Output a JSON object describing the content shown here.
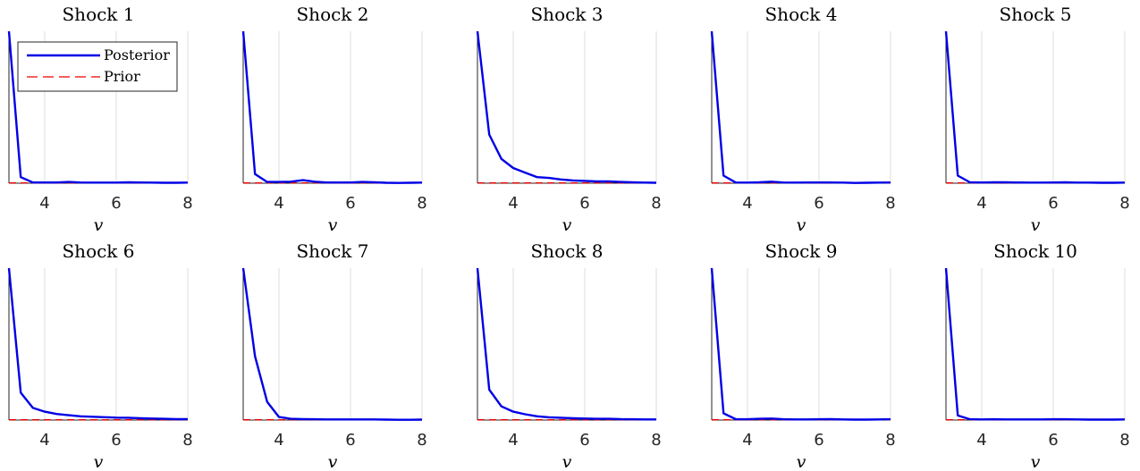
{
  "chart_data": {
    "type": "line",
    "layout": "2x5 small multiples",
    "xlabel": "v",
    "xlim": [
      3,
      8
    ],
    "xticks": [
      4,
      6,
      8
    ],
    "grid": "vertical",
    "legend": {
      "placement": "top-left of first panel",
      "entries": [
        {
          "label": "Posterior",
          "color": "#0000e6",
          "style": "solid"
        },
        {
          "label": "Prior",
          "color": "#e60000",
          "style": "dashed"
        }
      ]
    },
    "x": [
      3.0,
      3.33,
      3.67,
      4.0,
      4.33,
      4.67,
      5.0,
      5.33,
      5.67,
      6.0,
      6.33,
      6.67,
      7.0,
      7.33,
      7.67,
      8.0
    ],
    "panels": [
      {
        "title": "Shock 1",
        "posterior": [
          1.0,
          0.04,
          0.005,
          0.005,
          0.005,
          0.008,
          0.005,
          0.004,
          0.004,
          0.004,
          0.006,
          0.005,
          0.004,
          0.003,
          0.003,
          0.004
        ],
        "prior": [
          0.002,
          0.002,
          0.002,
          0.002,
          0.002,
          0.002,
          0.002,
          0.002,
          0.002,
          0.002,
          0.002,
          0.002,
          0.002,
          0.002,
          0.002,
          0.002
        ]
      },
      {
        "title": "Shock 2",
        "posterior": [
          1.0,
          0.06,
          0.008,
          0.008,
          0.01,
          0.02,
          0.01,
          0.005,
          0.005,
          0.005,
          0.008,
          0.006,
          0.003,
          0.002,
          0.003,
          0.004
        ],
        "prior": [
          0.002,
          0.002,
          0.002,
          0.002,
          0.002,
          0.002,
          0.002,
          0.002,
          0.002,
          0.002,
          0.002,
          0.002,
          0.002,
          0.002,
          0.002,
          0.002
        ]
      },
      {
        "title": "Shock 3",
        "posterior": [
          1.0,
          0.32,
          0.16,
          0.1,
          0.07,
          0.04,
          0.035,
          0.025,
          0.018,
          0.015,
          0.012,
          0.012,
          0.008,
          0.006,
          0.004,
          0.003
        ],
        "prior": [
          0.002,
          0.002,
          0.002,
          0.002,
          0.002,
          0.002,
          0.002,
          0.002,
          0.002,
          0.002,
          0.002,
          0.002,
          0.002,
          0.002,
          0.002,
          0.002
        ]
      },
      {
        "title": "Shock 4",
        "posterior": [
          1.0,
          0.05,
          0.005,
          0.004,
          0.006,
          0.01,
          0.005,
          0.004,
          0.005,
          0.005,
          0.005,
          0.004,
          0.002,
          0.003,
          0.004,
          0.005
        ],
        "prior": [
          0.002,
          0.002,
          0.002,
          0.002,
          0.002,
          0.002,
          0.002,
          0.002,
          0.002,
          0.002,
          0.002,
          0.002,
          0.002,
          0.002,
          0.002,
          0.002
        ]
      },
      {
        "title": "Shock 5",
        "posterior": [
          1.0,
          0.05,
          0.006,
          0.005,
          0.006,
          0.006,
          0.005,
          0.004,
          0.004,
          0.005,
          0.006,
          0.004,
          0.004,
          0.003,
          0.003,
          0.004
        ],
        "prior": [
          0.002,
          0.002,
          0.002,
          0.002,
          0.002,
          0.002,
          0.002,
          0.002,
          0.002,
          0.002,
          0.002,
          0.002,
          0.002,
          0.002,
          0.002,
          0.002
        ]
      },
      {
        "title": "Shock 6",
        "posterior": [
          1.0,
          0.18,
          0.08,
          0.055,
          0.04,
          0.032,
          0.025,
          0.022,
          0.019,
          0.016,
          0.015,
          0.012,
          0.01,
          0.008,
          0.006,
          0.006
        ],
        "prior": [
          0.002,
          0.002,
          0.002,
          0.002,
          0.002,
          0.002,
          0.002,
          0.002,
          0.002,
          0.002,
          0.002,
          0.002,
          0.002,
          0.002,
          0.002,
          0.002
        ]
      },
      {
        "title": "Shock 7",
        "posterior": [
          1.0,
          0.42,
          0.12,
          0.02,
          0.008,
          0.006,
          0.005,
          0.004,
          0.004,
          0.004,
          0.004,
          0.004,
          0.003,
          0.002,
          0.002,
          0.003
        ],
        "prior": [
          0.002,
          0.002,
          0.002,
          0.002,
          0.002,
          0.002,
          0.002,
          0.002,
          0.002,
          0.002,
          0.002,
          0.002,
          0.002,
          0.002,
          0.002,
          0.002
        ]
      },
      {
        "title": "Shock 8",
        "posterior": [
          1.0,
          0.2,
          0.09,
          0.055,
          0.038,
          0.025,
          0.018,
          0.015,
          0.012,
          0.01,
          0.008,
          0.008,
          0.006,
          0.005,
          0.004,
          0.004
        ],
        "prior": [
          0.002,
          0.002,
          0.002,
          0.002,
          0.002,
          0.002,
          0.002,
          0.002,
          0.002,
          0.002,
          0.002,
          0.002,
          0.002,
          0.002,
          0.002,
          0.002
        ]
      },
      {
        "title": "Shock 9",
        "posterior": [
          1.0,
          0.045,
          0.006,
          0.005,
          0.008,
          0.01,
          0.005,
          0.004,
          0.004,
          0.005,
          0.006,
          0.004,
          0.003,
          0.003,
          0.004,
          0.005
        ],
        "prior": [
          0.002,
          0.002,
          0.002,
          0.002,
          0.002,
          0.002,
          0.002,
          0.002,
          0.002,
          0.002,
          0.002,
          0.002,
          0.002,
          0.002,
          0.002,
          0.002
        ]
      },
      {
        "title": "Shock 10",
        "posterior": [
          1.0,
          0.03,
          0.005,
          0.004,
          0.005,
          0.004,
          0.004,
          0.004,
          0.004,
          0.005,
          0.005,
          0.004,
          0.003,
          0.003,
          0.003,
          0.004
        ],
        "prior": [
          0.002,
          0.002,
          0.002,
          0.002,
          0.002,
          0.002,
          0.002,
          0.002,
          0.002,
          0.002,
          0.002,
          0.002,
          0.002,
          0.002,
          0.002,
          0.002
        ]
      }
    ]
  }
}
